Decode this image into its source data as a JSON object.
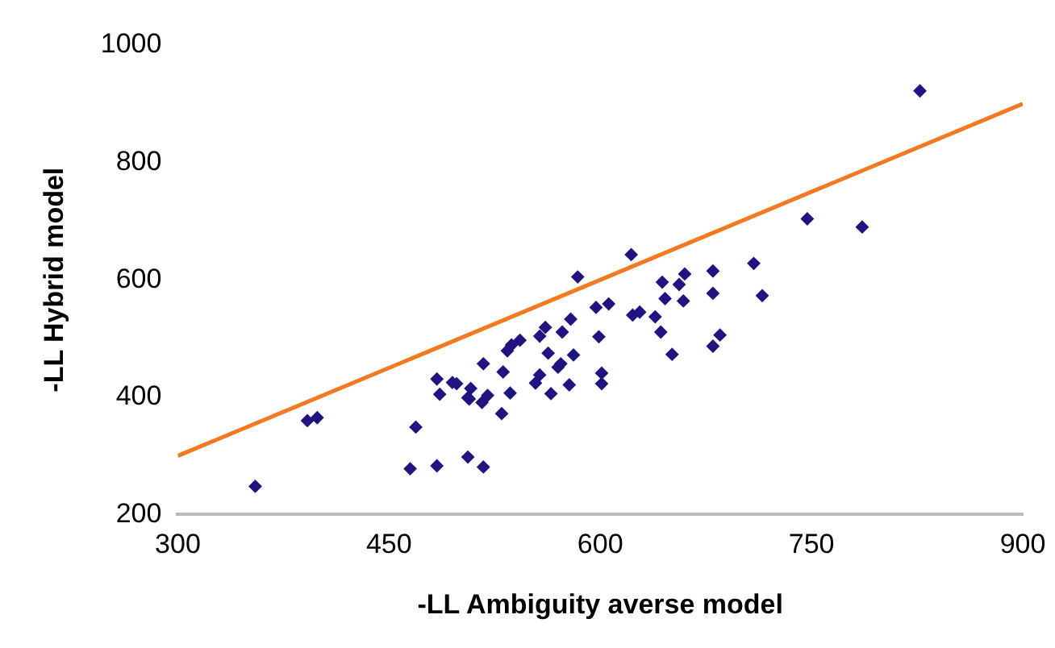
{
  "chart_data": {
    "type": "scatter",
    "xlabel": "-LL Ambiguity averse model",
    "ylabel": "-LL Hybrid model",
    "xlim": [
      300,
      900
    ],
    "xticks": [
      300,
      450,
      600,
      750,
      900
    ],
    "ylim": [
      200,
      1000
    ],
    "yticks": [
      200,
      400,
      600,
      800,
      1000
    ],
    "grid": false,
    "legend": false,
    "marker": "diamond",
    "series": [
      {
        "color": "#1f1480",
        "x": [
          355,
          392,
          399,
          469,
          465,
          484,
          506,
          517,
          484,
          486,
          495,
          498,
          508,
          506,
          507,
          516,
          520,
          531,
          536,
          530,
          554,
          557,
          565,
          578,
          584,
          622,
          597,
          606,
          599,
          601,
          601,
          623,
          628,
          639,
          643,
          644,
          646,
          651,
          656,
          660,
          659,
          680,
          680,
          680,
          685,
          709,
          715,
          786,
          827,
          747,
          561,
          579,
          573,
          557,
          543,
          537,
          534,
          563,
          581,
          517,
          572,
          570
        ],
        "values": [
          248,
          360,
          365,
          349,
          278,
          283,
          298,
          281,
          431,
          405,
          425,
          423,
          415,
          399,
          397,
          391,
          403,
          443,
          407,
          372,
          424,
          438,
          406,
          421,
          605,
          643,
          553,
          559,
          503,
          441,
          423,
          540,
          545,
          537,
          511,
          596,
          568,
          473,
          592,
          610,
          564,
          615,
          577,
          487,
          506,
          628,
          573,
          690,
          922,
          704,
          519,
          533,
          511,
          504,
          497,
          489,
          479,
          475,
          472,
          457,
          457,
          451
        ]
      },
      {
        "type": "line",
        "color": "#f47920",
        "x": [
          300,
          900
        ],
        "values": [
          300,
          900
        ],
        "marker": "none",
        "line_style": "solid"
      }
    ]
  }
}
